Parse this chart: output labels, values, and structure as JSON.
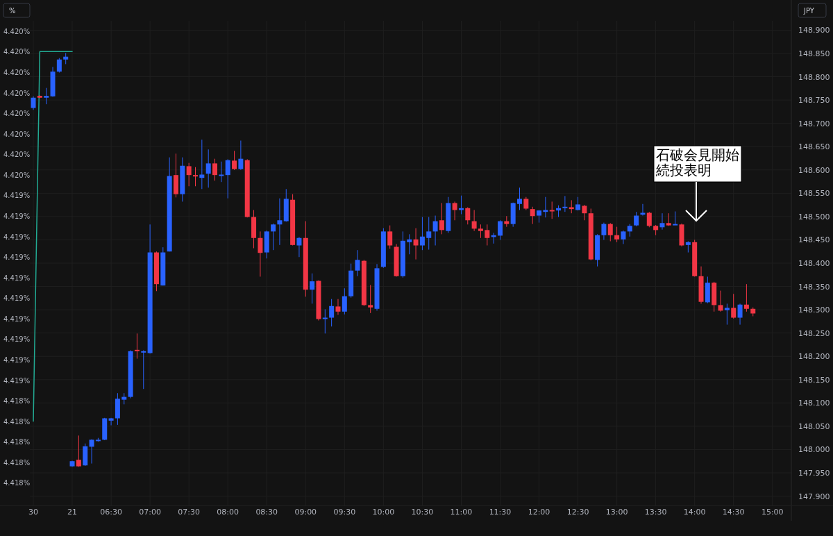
{
  "chart_data": {
    "type": "candlestick",
    "ylabel": "JPY",
    "y2label": "%",
    "grid": true,
    "categories": [
      "30",
      null,
      null,
      null,
      null,
      null,
      "21",
      null,
      null,
      null,
      null,
      null,
      "06:30",
      null,
      null,
      null,
      null,
      null,
      "07:00",
      null,
      null,
      null,
      null,
      null,
      "07:30",
      null,
      null,
      null,
      null,
      null,
      "08:00",
      null,
      null,
      null,
      null,
      null,
      "08:30",
      null,
      null,
      null,
      null,
      null,
      "09:00",
      null,
      null,
      null,
      null,
      null,
      "09:30",
      null,
      null,
      null,
      null,
      null,
      "10:00",
      null,
      null,
      null,
      null,
      null,
      "10:30",
      null,
      null,
      null,
      null,
      null,
      "11:00",
      null,
      null,
      null,
      null,
      null,
      "11:30",
      null,
      null,
      null,
      null,
      null,
      "12:00",
      null,
      null,
      null,
      null,
      null,
      "12:30",
      null,
      null,
      null,
      null,
      null,
      "13:00",
      null,
      null,
      null,
      null,
      null,
      "13:30",
      null,
      null,
      null,
      null,
      null,
      "14:00",
      null,
      null,
      null,
      null,
      null,
      "14:30",
      null,
      null,
      null,
      null,
      null,
      "15:00"
    ],
    "ohlc": [
      [
        148.733,
        148.758,
        148.729,
        148.755
      ],
      [
        148.759,
        148.76,
        148.754,
        148.755
      ],
      [
        148.755,
        148.776,
        148.741,
        148.759
      ],
      [
        148.758,
        148.821,
        148.757,
        148.811
      ],
      [
        148.811,
        148.84,
        148.809,
        148.837
      ],
      [
        148.837,
        148.851,
        148.827,
        148.843
      ],
      [
        147.964,
        147.976,
        147.963,
        147.975
      ],
      [
        147.978,
        148.03,
        147.963,
        147.964
      ],
      [
        147.966,
        148.013,
        147.965,
        148.007
      ],
      [
        148.006,
        148.022,
        147.97,
        148.021
      ],
      [
        148.021,
        148.025,
        148.017,
        148.021
      ],
      [
        148.021,
        148.068,
        148.02,
        148.067
      ],
      [
        148.062,
        148.068,
        148.052,
        148.067
      ],
      [
        148.067,
        148.121,
        148.053,
        148.109
      ],
      [
        148.107,
        148.121,
        148.097,
        148.113
      ],
      [
        148.113,
        148.213,
        148.11,
        148.211
      ],
      [
        148.214,
        148.249,
        148.195,
        148.211
      ],
      [
        148.21,
        148.213,
        148.13,
        148.211
      ],
      [
        148.207,
        148.483,
        148.206,
        148.423
      ],
      [
        148.423,
        148.425,
        148.34,
        148.355
      ],
      [
        148.352,
        148.434,
        148.352,
        148.423
      ],
      [
        148.425,
        148.627,
        148.425,
        148.587
      ],
      [
        148.589,
        148.635,
        148.541,
        148.548
      ],
      [
        148.548,
        148.627,
        148.532,
        148.609
      ],
      [
        148.608,
        148.615,
        148.565,
        148.589
      ],
      [
        148.589,
        148.606,
        148.565,
        148.586
      ],
      [
        148.583,
        148.665,
        148.559,
        148.59
      ],
      [
        148.592,
        148.644,
        148.562,
        148.614
      ],
      [
        148.614,
        148.624,
        148.577,
        148.589
      ],
      [
        148.587,
        148.618,
        148.574,
        148.59
      ],
      [
        148.589,
        148.623,
        148.539,
        148.621
      ],
      [
        148.62,
        148.641,
        148.6,
        148.602
      ],
      [
        148.602,
        148.663,
        148.6,
        148.624
      ],
      [
        148.621,
        148.623,
        148.498,
        148.499
      ],
      [
        148.499,
        148.514,
        148.432,
        148.454
      ],
      [
        148.454,
        148.468,
        148.371,
        148.422
      ],
      [
        148.423,
        148.47,
        148.41,
        148.468
      ],
      [
        148.468,
        148.485,
        148.428,
        148.483
      ],
      [
        148.483,
        148.539,
        148.439,
        148.492
      ],
      [
        148.49,
        148.559,
        148.489,
        148.538
      ],
      [
        148.536,
        148.548,
        148.438,
        148.439
      ],
      [
        148.438,
        148.456,
        148.413,
        148.454
      ],
      [
        148.454,
        148.49,
        148.328,
        148.343
      ],
      [
        148.343,
        148.378,
        148.313,
        148.361
      ],
      [
        148.362,
        148.363,
        148.277,
        148.28
      ],
      [
        148.28,
        148.301,
        148.249,
        148.283
      ],
      [
        148.283,
        148.323,
        148.264,
        148.308
      ],
      [
        148.307,
        148.323,
        148.289,
        148.296
      ],
      [
        148.296,
        148.346,
        148.29,
        148.329
      ],
      [
        148.329,
        148.399,
        148.326,
        148.384
      ],
      [
        148.384,
        148.428,
        148.372,
        148.407
      ],
      [
        148.405,
        148.407,
        148.308,
        148.31
      ],
      [
        148.31,
        148.353,
        148.293,
        148.305
      ],
      [
        148.302,
        148.398,
        148.298,
        148.389
      ],
      [
        148.392,
        148.475,
        148.39,
        148.468
      ],
      [
        148.468,
        148.481,
        148.431,
        148.438
      ],
      [
        148.435,
        148.441,
        148.371,
        148.372
      ],
      [
        148.372,
        148.468,
        148.369,
        148.448
      ],
      [
        148.445,
        148.462,
        148.419,
        148.451
      ],
      [
        148.451,
        148.475,
        148.408,
        148.438
      ],
      [
        148.438,
        148.499,
        148.428,
        148.457
      ],
      [
        148.454,
        148.499,
        148.429,
        148.468
      ],
      [
        148.468,
        148.502,
        148.438,
        148.49
      ],
      [
        148.492,
        148.529,
        148.462,
        148.471
      ],
      [
        148.469,
        148.542,
        148.465,
        148.529
      ],
      [
        148.529,
        148.532,
        148.492,
        148.514
      ],
      [
        148.514,
        148.545,
        148.505,
        148.518
      ],
      [
        148.518,
        148.52,
        148.483,
        148.492
      ],
      [
        148.49,
        148.514,
        148.469,
        148.474
      ],
      [
        148.474,
        148.483,
        148.454,
        148.469
      ],
      [
        148.471,
        148.483,
        148.438,
        148.454
      ],
      [
        148.456,
        148.465,
        148.442,
        148.46
      ],
      [
        148.459,
        148.492,
        148.45,
        148.49
      ],
      [
        148.49,
        148.501,
        148.478,
        148.484
      ],
      [
        148.484,
        148.53,
        148.478,
        148.529
      ],
      [
        148.527,
        148.562,
        148.514,
        148.538
      ],
      [
        148.538,
        148.542,
        148.514,
        148.517
      ],
      [
        148.516,
        148.521,
        148.484,
        148.501
      ],
      [
        148.502,
        148.514,
        148.487,
        148.513
      ],
      [
        148.51,
        148.542,
        148.498,
        148.514
      ],
      [
        148.514,
        148.532,
        148.495,
        148.511
      ],
      [
        148.513,
        148.524,
        148.499,
        148.518
      ],
      [
        148.518,
        148.544,
        148.51,
        148.521
      ],
      [
        148.52,
        148.535,
        148.507,
        148.516
      ],
      [
        148.514,
        148.542,
        148.513,
        148.526
      ],
      [
        148.523,
        148.525,
        148.492,
        148.507
      ],
      [
        148.507,
        148.517,
        148.406,
        148.408
      ],
      [
        148.407,
        148.462,
        148.393,
        148.46
      ],
      [
        148.46,
        148.487,
        148.45,
        148.484
      ],
      [
        148.484,
        148.486,
        148.447,
        148.46
      ],
      [
        148.46,
        148.478,
        148.445,
        148.451
      ],
      [
        148.451,
        148.47,
        148.441,
        148.468
      ],
      [
        148.468,
        148.484,
        148.457,
        148.48
      ],
      [
        148.481,
        148.51,
        148.479,
        148.502
      ],
      [
        148.504,
        148.527,
        148.502,
        148.508
      ],
      [
        148.508,
        148.51,
        148.477,
        148.48
      ],
      [
        148.48,
        148.482,
        148.46,
        148.471
      ],
      [
        148.477,
        148.507,
        148.472,
        148.486
      ],
      [
        148.486,
        148.507,
        148.48,
        148.481
      ],
      [
        148.483,
        148.511,
        148.483,
        148.484
      ],
      [
        148.483,
        148.485,
        148.436,
        148.438
      ],
      [
        148.439,
        148.447,
        148.423,
        148.445
      ],
      [
        148.445,
        148.45,
        148.371,
        148.372
      ],
      [
        148.372,
        148.393,
        148.313,
        148.317
      ],
      [
        148.316,
        148.371,
        148.314,
        148.358
      ],
      [
        148.358,
        148.36,
        148.296,
        148.31
      ],
      [
        148.31,
        148.341,
        148.296,
        148.298
      ],
      [
        148.299,
        148.313,
        148.268,
        148.304
      ],
      [
        148.304,
        148.334,
        148.281,
        148.283
      ],
      [
        148.283,
        148.313,
        148.268,
        148.311
      ],
      [
        148.311,
        148.355,
        148.296,
        148.302
      ],
      [
        148.302,
        148.305,
        148.286,
        148.292
      ],
      null,
      null,
      null
    ],
    "colors": [
      "#2962ff",
      "#f23645",
      "#2962ff",
      "#2962ff",
      "#2962ff",
      "#2962ff",
      "#2962ff",
      "#f23645",
      "#2962ff",
      "#2962ff",
      "#2962ff",
      "#2962ff",
      "#2962ff",
      "#2962ff",
      "#2962ff",
      "#2962ff",
      "#f23645",
      "#2962ff",
      "#2962ff",
      "#f23645",
      "#2962ff",
      "#2962ff",
      "#f23645",
      "#2962ff",
      "#f23645",
      "#f23645",
      "#2962ff",
      "#2962ff",
      "#f23645",
      "#2962ff",
      "#2962ff",
      "#f23645",
      "#2962ff",
      "#f23645",
      "#f23645",
      "#f23645",
      "#2962ff",
      "#2962ff",
      "#2962ff",
      "#2962ff",
      "#f23645",
      "#2962ff",
      "#f23645",
      "#2962ff",
      "#f23645",
      "#2962ff",
      "#2962ff",
      "#f23645",
      "#2962ff",
      "#2962ff",
      "#2962ff",
      "#f23645",
      "#f23645",
      "#2962ff",
      "#2962ff",
      "#f23645",
      "#f23645",
      "#2962ff",
      "#2962ff",
      "#f23645",
      "#2962ff",
      "#2962ff",
      "#2962ff",
      "#f23645",
      "#2962ff",
      "#f23645",
      "#2962ff",
      "#f23645",
      "#f23645",
      "#f23645",
      "#f23645",
      "#2962ff",
      "#2962ff",
      "#f23645",
      "#2962ff",
      "#2962ff",
      "#f23645",
      "#f23645",
      "#2962ff",
      "#2962ff",
      "#f23645",
      "#2962ff",
      "#2962ff",
      "#f23645",
      "#2962ff",
      "#f23645",
      "#f23645",
      "#2962ff",
      "#2962ff",
      "#f23645",
      "#f23645",
      "#2962ff",
      "#2962ff",
      "#2962ff",
      "#2962ff",
      "#f23645",
      "#f23645",
      "#2962ff",
      "#f23645",
      "#2962ff",
      "#f23645",
      "#2962ff",
      "#f23645",
      "#f23645",
      "#2962ff",
      "#f23645",
      "#f23645",
      "#2962ff",
      "#f23645",
      "#2962ff",
      "#f23645",
      "#f23645",
      null,
      null,
      null
    ],
    "ylim": [
      147.88,
      148.92
    ],
    "yticks": [
      {
        "value": 147.9,
        "label": "147.900"
      },
      {
        "value": 147.95,
        "label": "147.950"
      },
      {
        "value": 148.0,
        "label": "148.000"
      },
      {
        "value": 148.05,
        "label": "148.050"
      },
      {
        "value": 148.1,
        "label": "148.100"
      },
      {
        "value": 148.15,
        "label": "148.150"
      },
      {
        "value": 148.2,
        "label": "148.200"
      },
      {
        "value": 148.25,
        "label": "148.250"
      },
      {
        "value": 148.3,
        "label": "148.300"
      },
      {
        "value": 148.35,
        "label": "148.350"
      },
      {
        "value": 148.4,
        "label": "148.400"
      },
      {
        "value": 148.45,
        "label": "148.450"
      },
      {
        "value": 148.5,
        "label": "148.500"
      },
      {
        "value": 148.55,
        "label": "148.550"
      },
      {
        "value": 148.6,
        "label": "148.600"
      },
      {
        "value": 148.65,
        "label": "148.650"
      },
      {
        "value": 148.7,
        "label": "148.700"
      },
      {
        "value": 148.75,
        "label": "148.750"
      },
      {
        "value": 148.8,
        "label": "148.800"
      },
      {
        "value": 148.85,
        "label": "148.850"
      },
      {
        "value": 148.9,
        "label": "148.900"
      }
    ],
    "y2lim": [
      4.41789,
      4.42025
    ],
    "y2ticks": [
      {
        "value": 4.418,
        "label": "4.418%"
      },
      {
        "value": 4.4181,
        "label": "4.418%"
      },
      {
        "value": 4.4182,
        "label": "4.418%"
      },
      {
        "value": 4.4183,
        "label": "4.418%"
      },
      {
        "value": 4.4184,
        "label": "4.418%"
      },
      {
        "value": 4.4185,
        "label": "4.419%"
      },
      {
        "value": 4.4186,
        "label": "4.419%"
      },
      {
        "value": 4.4187,
        "label": "4.419%"
      },
      {
        "value": 4.4188,
        "label": "4.419%"
      },
      {
        "value": 4.4189,
        "label": "4.419%"
      },
      {
        "value": 4.419,
        "label": "4.419%"
      },
      {
        "value": 4.4191,
        "label": "4.419%"
      },
      {
        "value": 4.4192,
        "label": "4.419%"
      },
      {
        "value": 4.4193,
        "label": "4.419%"
      },
      {
        "value": 4.4194,
        "label": "4.419%"
      },
      {
        "value": 4.4195,
        "label": "4.420%"
      },
      {
        "value": 4.4196,
        "label": "4.420%"
      },
      {
        "value": 4.4197,
        "label": "4.420%"
      },
      {
        "value": 4.4198,
        "label": "4.420%"
      },
      {
        "value": 4.4199,
        "label": "4.420%"
      },
      {
        "value": 4.42,
        "label": "4.420%"
      },
      {
        "value": 4.4201,
        "label": "4.420%"
      },
      {
        "value": 4.4202,
        "label": "4.420%"
      }
    ],
    "series": [
      {
        "type": "line",
        "axis": "y2",
        "color": "#22ab94",
        "values": [
          4.4183,
          4.4201,
          4.4201,
          4.4201,
          4.4201,
          4.4201,
          4.4201,
          null,
          null,
          null,
          null,
          null,
          null,
          null,
          null,
          null,
          null,
          null,
          null,
          null,
          null,
          null,
          null,
          null,
          null,
          null,
          null,
          null,
          null,
          null,
          null,
          null,
          null,
          null,
          null,
          null,
          null,
          null,
          null,
          null,
          null,
          null,
          null,
          null,
          null,
          null,
          null,
          null,
          null,
          null,
          null,
          null,
          null,
          null,
          null,
          null,
          null,
          null,
          null,
          null,
          null,
          null,
          null,
          null,
          null,
          null,
          null,
          null,
          null,
          null,
          null,
          null,
          null,
          null,
          null,
          null,
          null,
          null,
          null,
          null,
          null,
          null,
          null,
          null,
          null,
          null,
          null,
          null,
          null,
          null,
          null,
          null,
          null,
          null,
          null,
          null,
          null,
          null,
          null,
          null,
          null,
          null,
          null,
          null,
          null,
          null,
          null,
          null,
          null,
          null,
          null,
          null,
          null,
          null,
          null
        ]
      }
    ],
    "annotations": [
      "石破会見開始続投表明"
    ]
  }
}
